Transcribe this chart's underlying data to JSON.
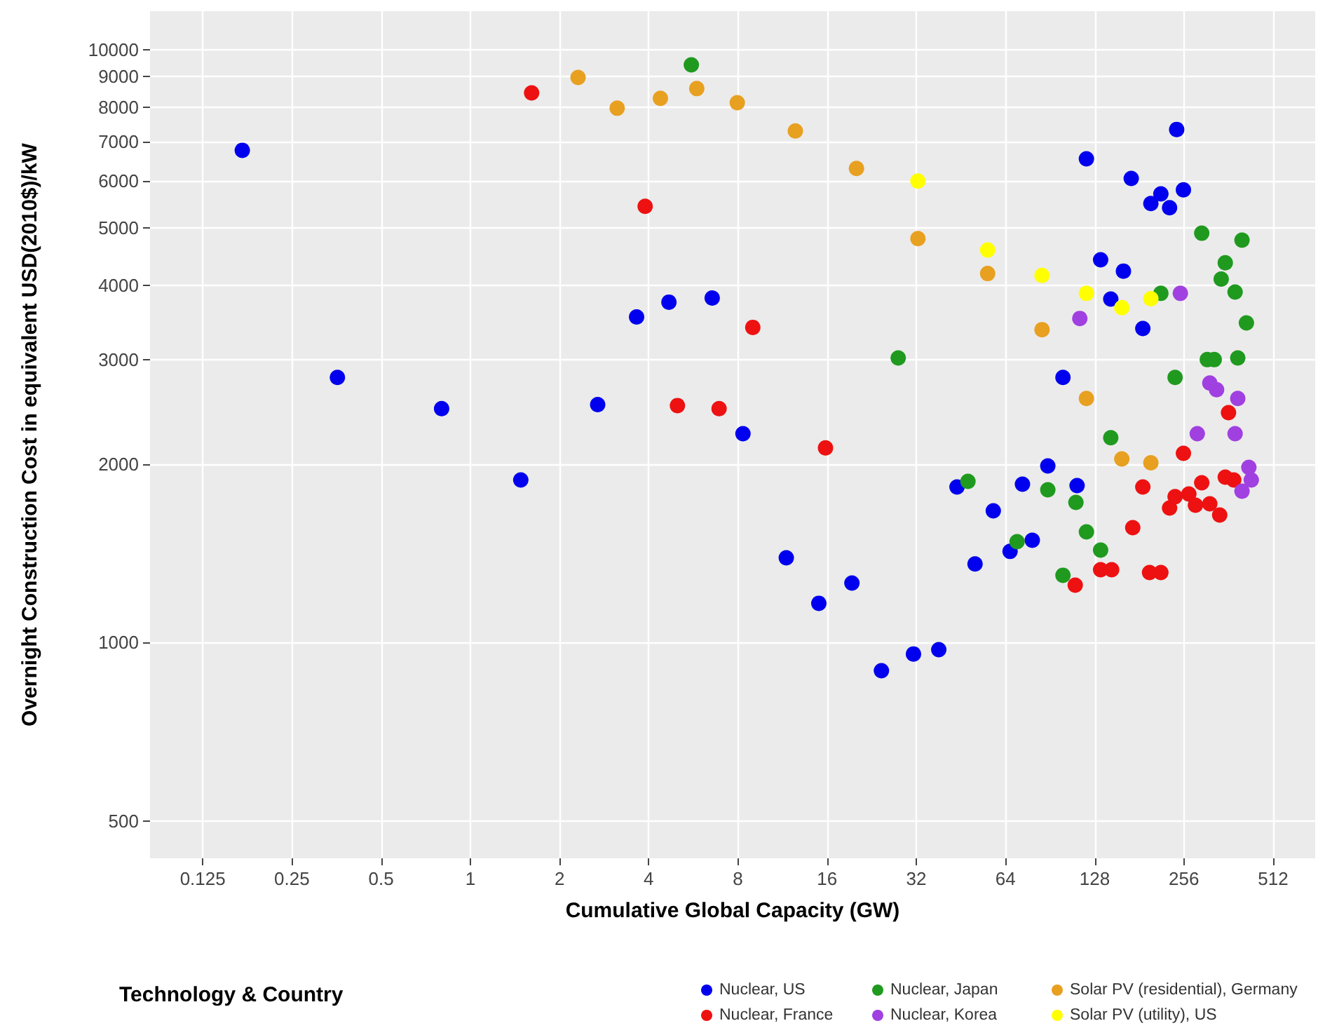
{
  "chart_data": {
    "type": "scatter",
    "xlabel": "Cumulative Global Capacity (GW)",
    "ylabel": "Overnight Construction Cost in equivalent USD(2010$)/kW",
    "legend_title": "Technology & Country",
    "log": "xy",
    "grid": true,
    "legend": "bottom",
    "marker": "circle",
    "xlim": [
      0.083,
      710
    ],
    "xticks": [
      0.125,
      0.25,
      0.5,
      1,
      2,
      4,
      8,
      16,
      32,
      64,
      128,
      256,
      512
    ],
    "ylim": [
      433,
      11600
    ],
    "yticks": [
      500,
      1000,
      2000,
      3000,
      4000,
      5000,
      6000,
      7000,
      8000,
      9000,
      10000
    ],
    "series": [
      {
        "name": "Nuclear, US",
        "color": "#0000ee",
        "x": [
          0.17,
          0.356,
          0.8,
          1.48,
          2.69,
          3.64,
          4.68,
          6.55,
          8.32,
          11.65,
          15,
          19.4,
          24.4,
          31.3,
          38.1,
          43.9,
          50.5,
          58.2,
          66.3,
          73,
          78.8,
          88.9,
          100,
          111.6,
          120,
          134,
          145,
          160,
          170,
          186,
          198,
          214,
          229,
          242,
          255
        ],
        "values": [
          6760,
          2800,
          2480,
          1880,
          2520,
          3540,
          3750,
          3810,
          2250,
          1390,
          1165,
          1260,
          897,
          957,
          973,
          1830,
          1357,
          1668,
          1425,
          1850,
          1488,
          1985,
          2800,
          1840,
          6540,
          4420,
          3795,
          4230,
          6060,
          3385,
          5500,
          5710,
          5410,
          7330,
          5800
        ]
      },
      {
        "name": "Nuclear, France",
        "color": "#ee1111",
        "x": [
          1.61,
          3.89,
          5,
          6.91,
          8.98,
          15.8,
          110,
          134,
          146,
          172,
          186,
          196,
          214,
          255,
          229,
          239,
          266,
          280,
          294,
          313,
          338,
          353,
          377,
          362
        ],
        "values": [
          8450,
          5440,
          2510,
          2480,
          3400,
          2130,
          1250,
          1327,
          1327,
          1563,
          1830,
          1313,
          1313,
          2085,
          1686,
          1762,
          1781,
          1705,
          1860,
          1714,
          1641,
          1901,
          1880,
          2442
        ]
      },
      {
        "name": "Nuclear, Japan",
        "color": "#1f9a1f",
        "x": [
          5.57,
          27.8,
          47.8,
          70,
          88.9,
          100,
          110.6,
          120,
          134,
          145,
          239,
          214,
          294,
          402,
          353,
          342,
          381,
          416,
          307,
          324,
          389
        ],
        "values": [
          9420,
          3020,
          1870,
          1480,
          1810,
          1299,
          1723,
          1537,
          1432,
          2215,
          2800,
          3880,
          4900,
          4770,
          4370,
          4100,
          3900,
          3460,
          3000,
          3000,
          3020
        ]
      },
      {
        "name": "Nuclear, Korea",
        "color": "#a040e0",
        "x": [
          114,
          249,
          313,
          330,
          389,
          284,
          381,
          424,
          432,
          402
        ],
        "values": [
          3520,
          3880,
          2740,
          2670,
          2580,
          2250,
          2250,
          1975,
          1880,
          1800
        ]
      },
      {
        "name": "Solar PV (residential), Germany",
        "color": "#e8a020",
        "x": [
          2.31,
          3.13,
          4.38,
          5.81,
          7.96,
          12.5,
          20.1,
          32.4,
          55.7,
          85,
          120,
          158,
          198
        ],
        "values": [
          8970,
          7960,
          8270,
          8590,
          8130,
          7290,
          6300,
          4800,
          4190,
          3370,
          2580,
          2040,
          2010
        ]
      },
      {
        "name": "Solar PV (utility), US",
        "color": "#ffff00",
        "x": [
          32.4,
          55.7,
          85,
          120,
          158,
          198
        ],
        "values": [
          6000,
          4590,
          4160,
          3880,
          3670,
          3800
        ]
      }
    ]
  }
}
